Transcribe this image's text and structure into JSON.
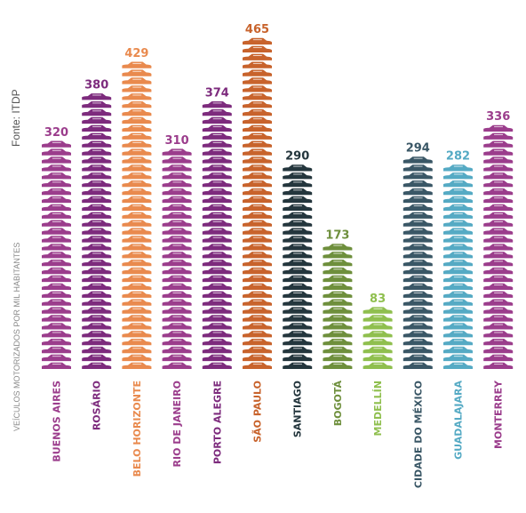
{
  "source": "Fonte: ITDP",
  "chart_data": {
    "type": "bar",
    "ylabel": "VEÍCULOS MOTORIZADOS POR MIL HABITANTES",
    "categories": [
      "BUENOS AIRES",
      "ROSÁRIO",
      "BELO HORIZONTE",
      "RIO DE JANEIRO",
      "PORTO ALEGRE",
      "SÃO PAULO",
      "SANTIAGO",
      "BOGOTÁ",
      "MEDELLÍN",
      "CIDADE DO MÉXICO",
      "GUADALAJARA",
      "MONTERREY"
    ],
    "values": [
      320,
      380,
      429,
      310,
      374,
      465,
      290,
      173,
      83,
      294,
      282,
      336
    ],
    "colors": [
      "#9b3d8c",
      "#7d2b7d",
      "#e98a4e",
      "#9b3d8c",
      "#7d2b7d",
      "#c8632c",
      "#24363d",
      "#6e8f3c",
      "#8fbf4e",
      "#3a5766",
      "#55aac4",
      "#9b3d8c"
    ],
    "ylim": [
      0,
      465
    ],
    "icon": "car-icon"
  }
}
